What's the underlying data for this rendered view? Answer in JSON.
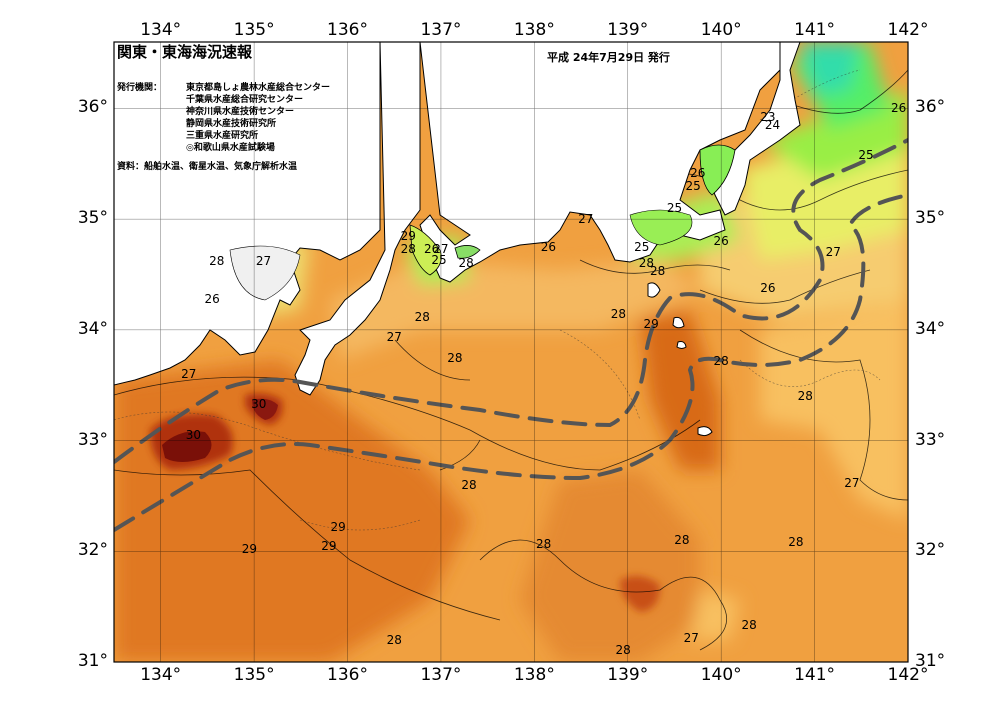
{
  "map": {
    "title": "関東・東海海況速報",
    "date": "平成 24年7月29日 発行",
    "issuer_label": "発行機関：",
    "issuers": [
      "東京都島しょ農林水産総合センター",
      "千葉県水産総合研究センター",
      "神奈川県水産技術センター",
      "静岡県水産技術研究所",
      "三重県水産研究所",
      "◎和歌山県水産試験場"
    ],
    "source": "資料：船舶水温、衛星水温、気象庁解析水温",
    "lon_ticks": [
      "134°",
      "135°",
      "136°",
      "137°",
      "138°",
      "139°",
      "140°",
      "141°",
      "142°"
    ],
    "lat_ticks": [
      "36°",
      "35°",
      "34°",
      "33°",
      "32°",
      "31°"
    ],
    "temperature_labels": [
      {
        "text": "23",
        "lon": 140.5,
        "lat": 35.92
      },
      {
        "text": "24",
        "lon": 140.55,
        "lat": 35.85
      },
      {
        "text": "26",
        "lon": 141.9,
        "lat": 36.0
      },
      {
        "text": "25",
        "lon": 141.55,
        "lat": 35.58
      },
      {
        "text": "26",
        "lon": 139.75,
        "lat": 35.42
      },
      {
        "text": "25",
        "lon": 139.7,
        "lat": 35.3
      },
      {
        "text": "25",
        "lon": 139.5,
        "lat": 35.1
      },
      {
        "text": "27",
        "lon": 138.55,
        "lat": 35.0
      },
      {
        "text": "26",
        "lon": 138.15,
        "lat": 34.75
      },
      {
        "text": "25",
        "lon": 139.15,
        "lat": 34.75
      },
      {
        "text": "26",
        "lon": 140.0,
        "lat": 34.8
      },
      {
        "text": "27",
        "lon": 141.2,
        "lat": 34.7
      },
      {
        "text": "26",
        "lon": 140.5,
        "lat": 34.38
      },
      {
        "text": "29",
        "lon": 136.65,
        "lat": 34.85
      },
      {
        "text": "28",
        "lon": 136.65,
        "lat": 34.73
      },
      {
        "text": "26",
        "lon": 136.9,
        "lat": 34.73
      },
      {
        "text": "27",
        "lon": 137.0,
        "lat": 34.73
      },
      {
        "text": "25",
        "lon": 136.98,
        "lat": 34.63
      },
      {
        "text": "28",
        "lon": 137.27,
        "lat": 34.6
      },
      {
        "text": "28",
        "lon": 139.2,
        "lat": 34.6
      },
      {
        "text": "28",
        "lon": 139.32,
        "lat": 34.53
      },
      {
        "text": "28",
        "lon": 134.6,
        "lat": 34.62
      },
      {
        "text": "27",
        "lon": 135.1,
        "lat": 34.62
      },
      {
        "text": "26",
        "lon": 134.55,
        "lat": 34.28
      },
      {
        "text": "28",
        "lon": 136.8,
        "lat": 34.12
      },
      {
        "text": "28",
        "lon": 138.9,
        "lat": 34.14
      },
      {
        "text": "29",
        "lon": 139.25,
        "lat": 34.05
      },
      {
        "text": "27",
        "lon": 136.5,
        "lat": 33.94
      },
      {
        "text": "28",
        "lon": 137.15,
        "lat": 33.75
      },
      {
        "text": "28",
        "lon": 140.0,
        "lat": 33.72
      },
      {
        "text": "27",
        "lon": 134.3,
        "lat": 33.6
      },
      {
        "text": "30",
        "lon": 135.05,
        "lat": 33.33
      },
      {
        "text": "28",
        "lon": 140.9,
        "lat": 33.4
      },
      {
        "text": "30",
        "lon": 134.35,
        "lat": 33.05
      },
      {
        "text": "28",
        "lon": 137.3,
        "lat": 32.6
      },
      {
        "text": "27",
        "lon": 141.4,
        "lat": 32.62
      },
      {
        "text": "29",
        "lon": 135.9,
        "lat": 32.22
      },
      {
        "text": "28",
        "lon": 138.1,
        "lat": 32.07
      },
      {
        "text": "28",
        "lon": 139.58,
        "lat": 32.1
      },
      {
        "text": "28",
        "lon": 140.8,
        "lat": 32.08
      },
      {
        "text": "29",
        "lon": 134.95,
        "lat": 32.02
      },
      {
        "text": "29",
        "lon": 135.8,
        "lat": 32.05
      },
      {
        "text": "28",
        "lon": 140.3,
        "lat": 31.33
      },
      {
        "text": "27",
        "lon": 139.68,
        "lat": 31.22
      },
      {
        "text": "28",
        "lon": 136.5,
        "lat": 31.2
      },
      {
        "text": "28",
        "lon": 138.95,
        "lat": 31.11
      }
    ]
  },
  "colors": {
    "frame": "#000000",
    "stream_line": "#555555",
    "t23": "#33dd99",
    "t24": "#55ee66",
    "t25": "#99ee44",
    "t26": "#e8ee66",
    "t27": "#f8c060",
    "t28": "#f0a040",
    "t29": "#e07820",
    "t30": "#b03010",
    "t31": "#7a1008"
  }
}
